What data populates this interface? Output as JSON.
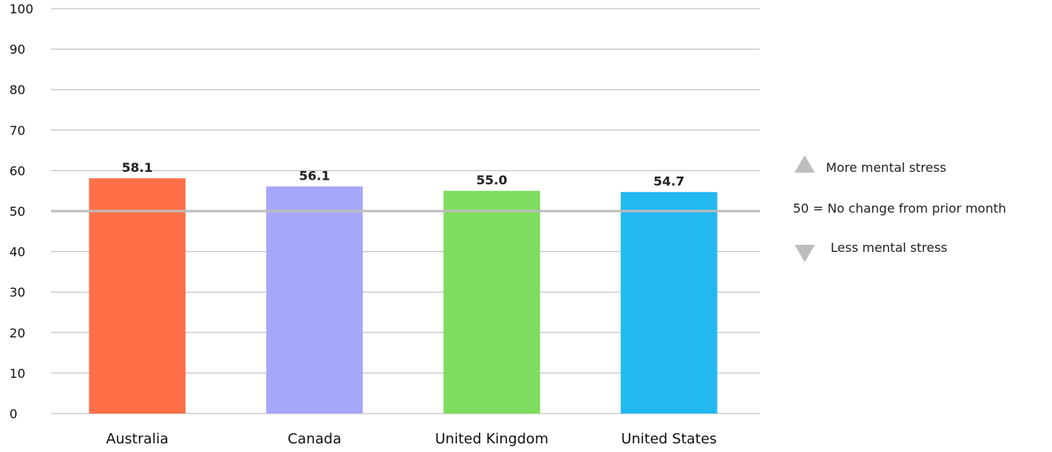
{
  "chart_data": {
    "type": "bar",
    "categories": [
      "Australia",
      "Canada",
      "United Kingdom",
      "United States"
    ],
    "values": [
      58.1,
      56.1,
      55.0,
      54.7
    ],
    "value_labels": [
      "58.1",
      "56.1",
      "55.0",
      "54.7"
    ],
    "colors": [
      "#ff7048",
      "#a6a6fb",
      "#80dc5f",
      "#22b8f0"
    ],
    "ylim": [
      0,
      100
    ],
    "yticks": [
      0,
      10,
      20,
      30,
      40,
      50,
      60,
      70,
      80,
      90,
      100
    ],
    "reference_line": 50,
    "grid": true,
    "title": "",
    "xlabel": "",
    "ylabel": ""
  },
  "legend": {
    "up_label": "More mental stress",
    "middle_label": "50 = No change from prior month",
    "down_label": "Less mental stress",
    "marker_color": "#bdbdbd",
    "placement": "right"
  }
}
